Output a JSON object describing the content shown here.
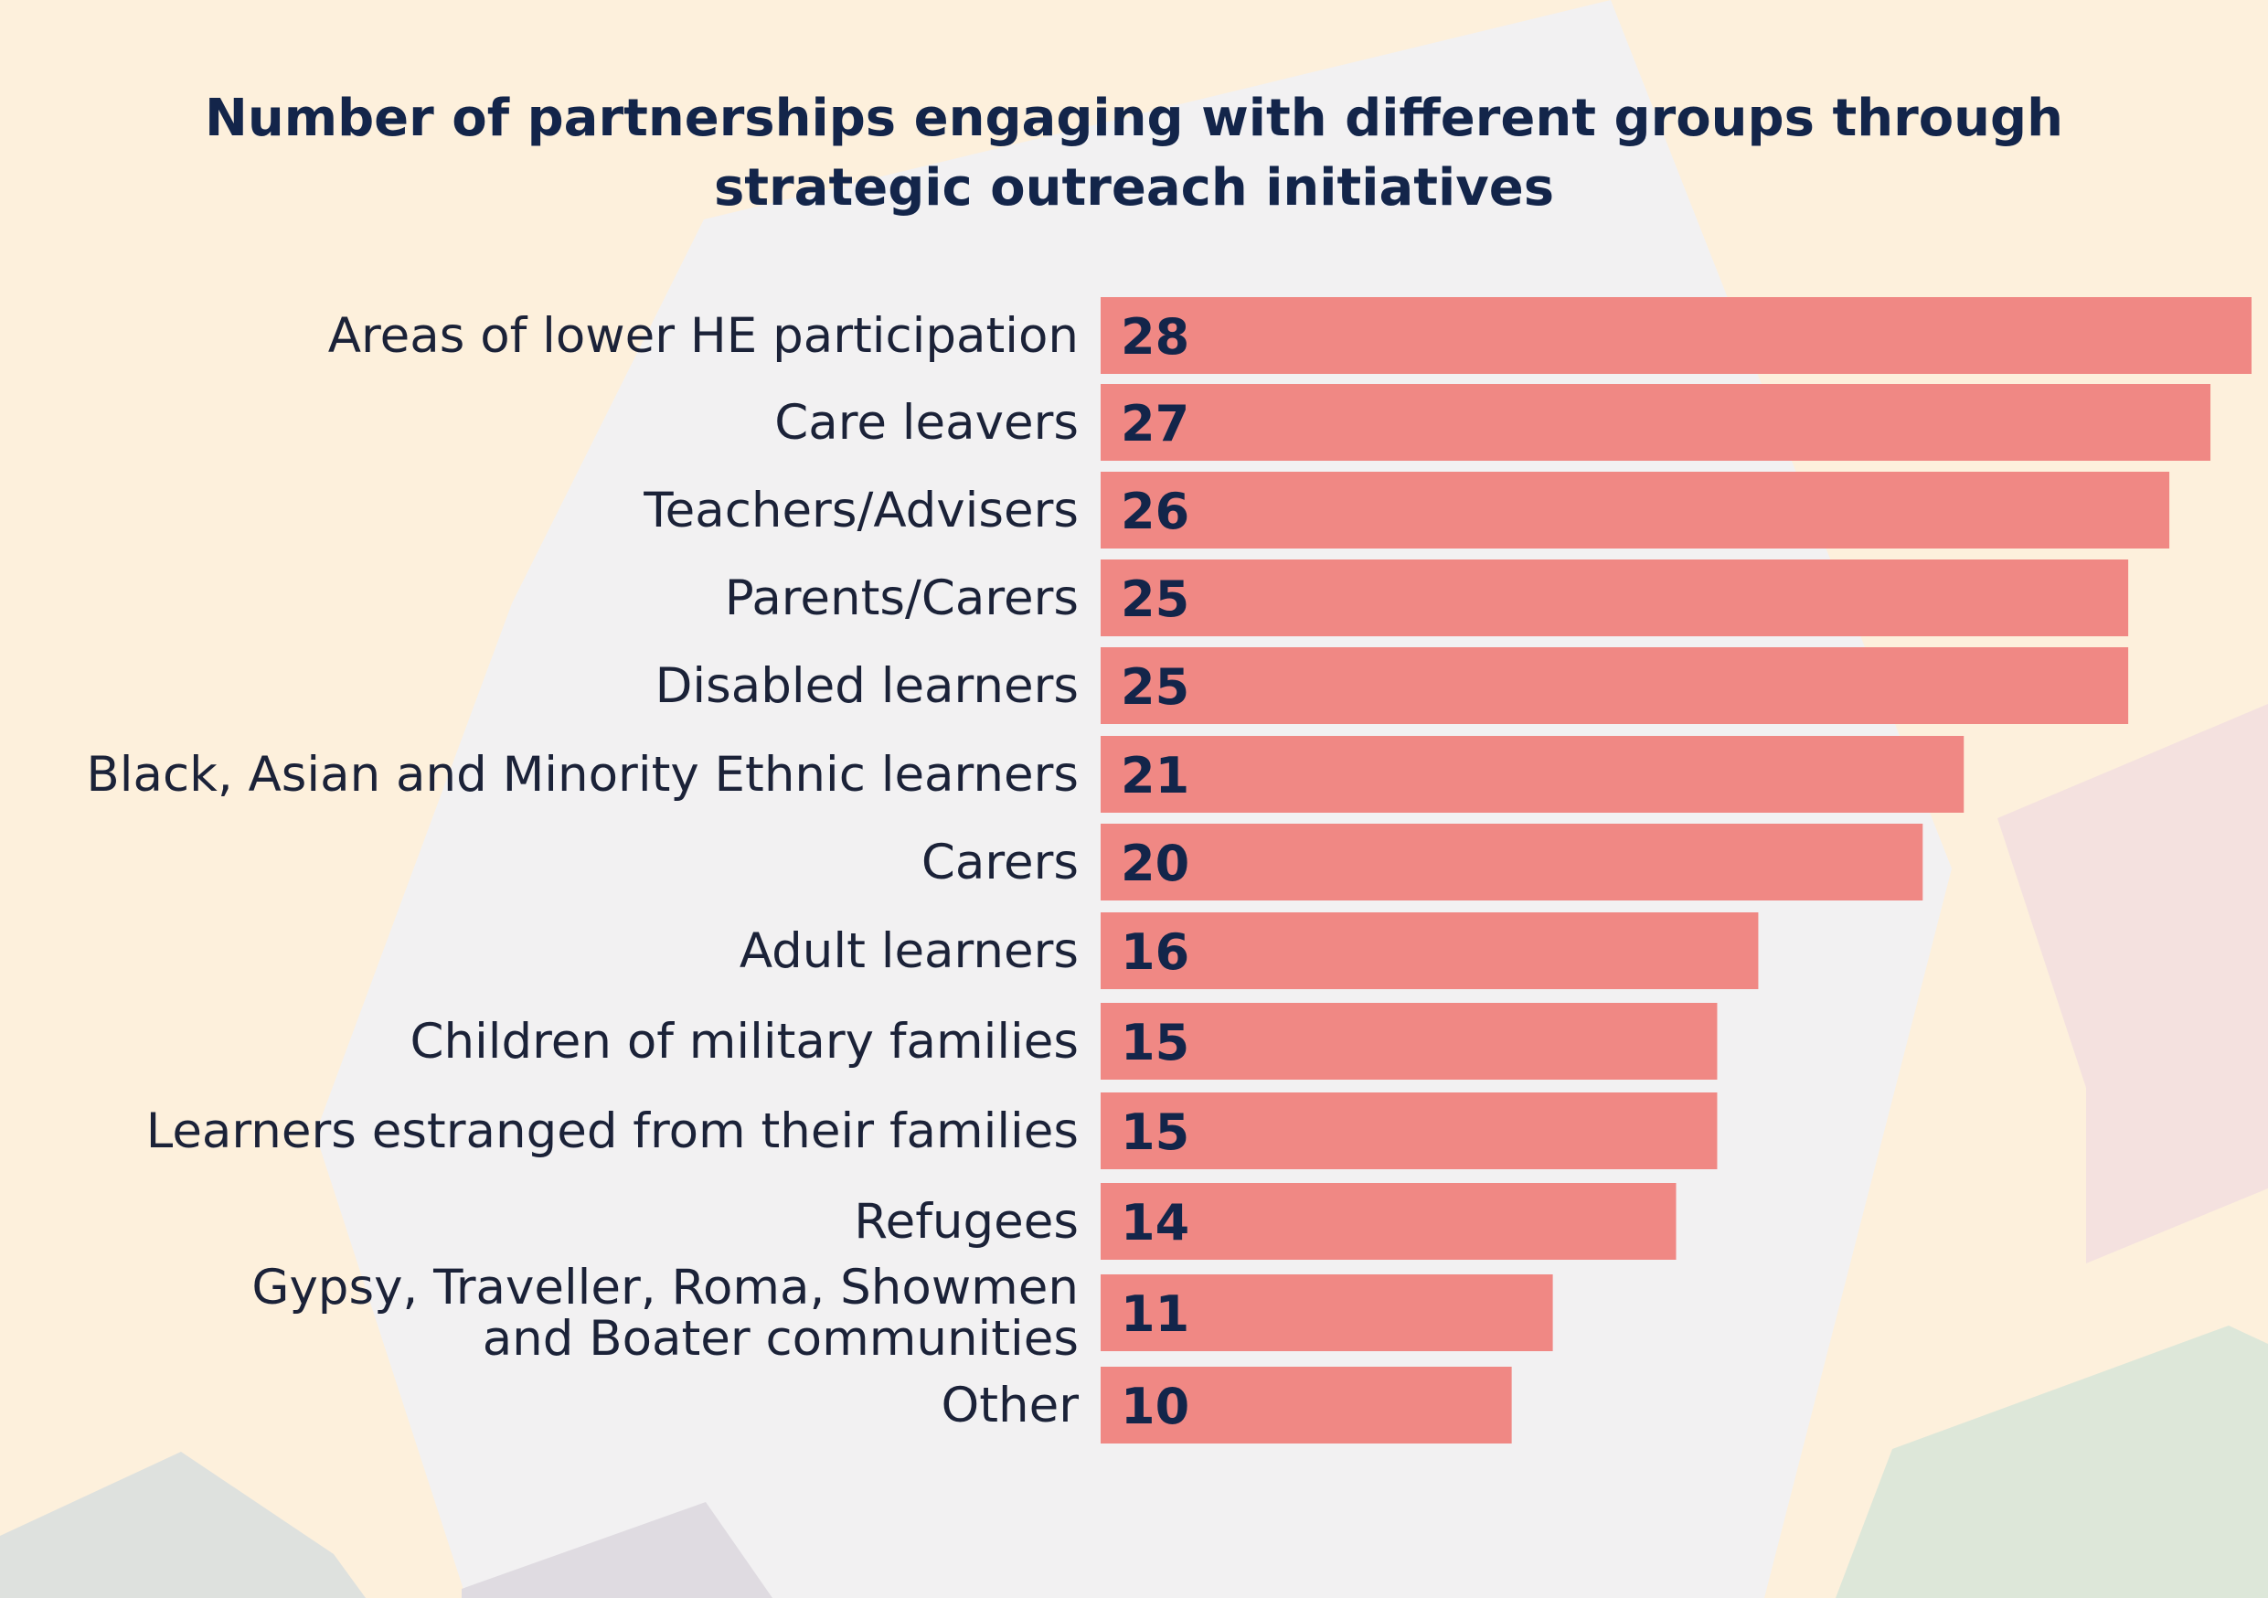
{
  "chart_data": {
    "type": "bar",
    "orientation": "horizontal",
    "title": "Number of partnerships engaging with different groups through\nstrategic outreach initiatives",
    "xlabel": "",
    "ylabel": "",
    "categories": [
      "Areas of lower HE participation",
      "Care leavers",
      "Teachers/Advisers",
      "Parents/Carers",
      "Disabled learners",
      "Black, Asian and Minority Ethnic learners",
      "Carers",
      "Adult learners",
      "Children of military families",
      "Learners estranged from their families",
      "Refugees",
      "Gypsy, Traveller, Roma, Showmen\nand Boater communities",
      "Other"
    ],
    "values": [
      28,
      27,
      26,
      25,
      25,
      21,
      20,
      16,
      15,
      15,
      14,
      11,
      10
    ],
    "xlim": [
      0,
      28
    ],
    "grid": false,
    "legend": "none",
    "colors": {
      "bar": "#F08884",
      "value_text": "#13254A",
      "label_text": "#1B2238",
      "title_text": "#13254A",
      "background": "#FDF0DC"
    }
  }
}
